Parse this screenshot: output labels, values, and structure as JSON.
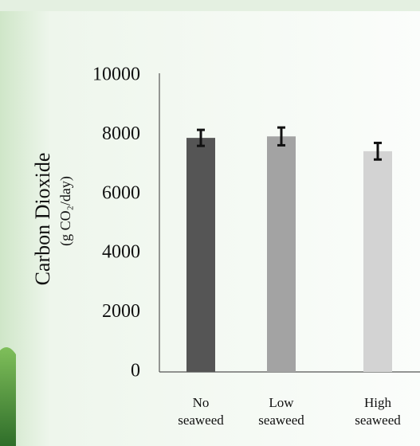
{
  "chart_data": {
    "type": "bar",
    "y_label": "Carbon Dioxide",
    "y_sublabel": "(g CO₂/day)",
    "categories": [
      "No seaweed",
      "Low seaweed",
      "High seaweed"
    ],
    "values": [
      7900,
      7950,
      7450
    ],
    "errors": [
      270,
      300,
      280
    ],
    "colors": [
      "#555555",
      "#a3a3a3",
      "#d3d3d3"
    ],
    "ylim": [
      0,
      10000
    ],
    "yticks": [
      0,
      2000,
      4000,
      6000,
      8000,
      10000
    ],
    "grid": false
  }
}
